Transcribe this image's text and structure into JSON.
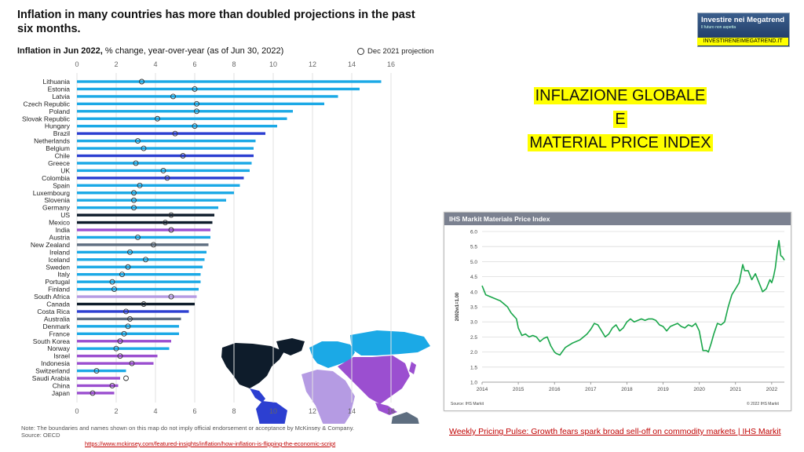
{
  "title": "Inflation in many countries has more than doubled projections in the past six months.",
  "subtitle_bold": "Inflation in Jun 2022,",
  "subtitle_rest": " % change, year-over-year (as of Jun 30, 2022)",
  "legend_label": "Dec 2021 projection",
  "note": "Note: The boundaries and names shown on this map do not imply official endorsement or acceptance by McKinsey & Company.",
  "source": "Source: OECD",
  "link_mckinsey": "https://www.mckinsey.com/featured-insights/inflation/how-inflation-is-flipping-the-economic-script",
  "brand_title": "Investire nei Megatrend",
  "brand_sub": "Il futuro non aspetta",
  "brand_url": "INVESTIRENEIMEGATREND.IT",
  "headline": [
    "INFLAZIONE GLOBALE",
    "E",
    "MATERIAL PRICE INDEX"
  ],
  "ihs_title": "IHS Markit Materials Price Index",
  "ihs_source": "Source: IHS Markit",
  "ihs_copyright": "© 2022 IHS Markit",
  "link_ihs": "Weekly Pricing Pulse: Growth fears spark broad sell-off on commodity markets | IHS Markit",
  "colors": {
    "europe": "#1ba9e6",
    "latam": "#2c3fd1",
    "northam": "#0e1c2b",
    "asia": "#9b4fd0",
    "africa": "#b59be3",
    "oceania": "#5e6e80",
    "ihs_line": "#1aa64a"
  },
  "chart_data": [
    {
      "type": "bar",
      "orientation": "horizontal",
      "title": "Inflation in Jun 2022, % change, year-over-year (as of Jun 30, 2022)",
      "xlim": [
        0,
        16
      ],
      "xticks": [
        0,
        2,
        4,
        6,
        8,
        10,
        12,
        14,
        16
      ],
      "legend": "Dec 2021 projection",
      "categories": [
        "Lithuania",
        "Estonia",
        "Latvia",
        "Czech Republic",
        "Poland",
        "Slovak Republic",
        "Hungary",
        "Brazil",
        "Netherlands",
        "Belgium",
        "Chile",
        "Greece",
        "UK",
        "Colombia",
        "Spain",
        "Luxembourg",
        "Slovenia",
        "Germany",
        "US",
        "Mexico",
        "India",
        "Austria",
        "New Zealand",
        "Ireland",
        "Iceland",
        "Sweden",
        "Italy",
        "Portugal",
        "Finland",
        "South Africa",
        "Canada",
        "Costa Rica",
        "Australia",
        "Denmark",
        "France",
        "South Korea",
        "Norway",
        "Israel",
        "Indonesia",
        "Switzerland",
        "Saudi Arabia",
        "China",
        "Japan"
      ],
      "regions": [
        "europe",
        "europe",
        "europe",
        "europe",
        "europe",
        "europe",
        "europe",
        "latam",
        "europe",
        "europe",
        "latam",
        "europe",
        "europe",
        "latam",
        "europe",
        "europe",
        "europe",
        "europe",
        "northam",
        "northam",
        "asia",
        "europe",
        "oceania",
        "europe",
        "europe",
        "europe",
        "europe",
        "europe",
        "europe",
        "africa",
        "northam",
        "latam",
        "oceania",
        "europe",
        "europe",
        "asia",
        "europe",
        "asia",
        "asia",
        "europe",
        "asia",
        "asia",
        "asia"
      ],
      "values": [
        15.5,
        14.4,
        13.3,
        12.6,
        11.0,
        10.7,
        10.2,
        9.6,
        9.1,
        9.0,
        9.0,
        8.9,
        8.8,
        8.5,
        8.3,
        8.0,
        7.6,
        7.2,
        7.0,
        6.9,
        6.8,
        6.8,
        6.7,
        6.6,
        6.5,
        6.4,
        6.3,
        6.3,
        6.2,
        6.1,
        6.0,
        5.7,
        5.3,
        5.2,
        5.2,
        4.8,
        4.7,
        4.1,
        3.9,
        2.5,
        2.2,
        2.1,
        1.9
      ],
      "projection": [
        3.3,
        6.0,
        4.9,
        6.1,
        6.1,
        4.1,
        6.0,
        5.0,
        3.1,
        3.4,
        5.4,
        3.0,
        4.4,
        4.6,
        3.2,
        2.9,
        2.9,
        2.9,
        4.8,
        4.5,
        4.8,
        3.1,
        3.9,
        2.7,
        3.5,
        2.6,
        2.3,
        1.8,
        1.9,
        4.8,
        3.4,
        2.5,
        2.7,
        2.6,
        2.4,
        2.2,
        2.0,
        2.2,
        2.8,
        1.0,
        2.5,
        1.8,
        0.8
      ]
    },
    {
      "type": "line",
      "title": "IHS Markit Materials Price Index",
      "ylabel": "2002w1=1.00",
      "ylim": [
        1.0,
        6.0
      ],
      "yticks": [
        "1.0",
        "1.5",
        "2.0",
        "2.5",
        "3.0",
        "3.5",
        "4.0",
        "4.5",
        "5.0",
        "5.5",
        "6.0"
      ],
      "xticks": [
        "2014",
        "2015",
        "2016",
        "2017",
        "2018",
        "2019",
        "2020",
        "2021",
        "2022"
      ],
      "xlim": [
        2014.0,
        2022.35
      ],
      "x": [
        2014.0,
        2014.1,
        2014.3,
        2014.5,
        2014.7,
        2014.8,
        2014.95,
        2015.0,
        2015.1,
        2015.2,
        2015.3,
        2015.4,
        2015.5,
        2015.6,
        2015.7,
        2015.8,
        2015.9,
        2016.0,
        2016.05,
        2016.15,
        2016.3,
        2016.5,
        2016.7,
        2016.9,
        2017.0,
        2017.1,
        2017.2,
        2017.3,
        2017.4,
        2017.5,
        2017.6,
        2017.7,
        2017.8,
        2017.9,
        2018.0,
        2018.1,
        2018.2,
        2018.4,
        2018.5,
        2018.6,
        2018.7,
        2018.8,
        2018.9,
        2019.0,
        2019.1,
        2019.2,
        2019.3,
        2019.4,
        2019.5,
        2019.6,
        2019.7,
        2019.8,
        2019.9,
        2020.0,
        2020.1,
        2020.2,
        2020.25,
        2020.33,
        2020.4,
        2020.5,
        2020.6,
        2020.7,
        2020.8,
        2020.9,
        2021.0,
        2021.1,
        2021.2,
        2021.25,
        2021.35,
        2021.45,
        2021.55,
        2021.65,
        2021.75,
        2021.85,
        2021.95,
        2022.0,
        2022.05,
        2022.1,
        2022.15,
        2022.2,
        2022.25,
        2022.3,
        2022.35
      ],
      "values": [
        4.2,
        3.9,
        3.8,
        3.7,
        3.5,
        3.3,
        3.1,
        2.8,
        2.55,
        2.6,
        2.5,
        2.55,
        2.5,
        2.35,
        2.45,
        2.5,
        2.2,
        2.0,
        1.95,
        1.9,
        2.15,
        2.3,
        2.4,
        2.6,
        2.75,
        2.95,
        2.9,
        2.7,
        2.5,
        2.6,
        2.8,
        2.9,
        2.7,
        2.8,
        3.0,
        3.1,
        3.0,
        3.1,
        3.05,
        3.1,
        3.1,
        3.05,
        2.9,
        2.85,
        2.7,
        2.85,
        2.9,
        2.95,
        2.85,
        2.8,
        2.9,
        2.85,
        2.95,
        2.7,
        2.05,
        2.05,
        2.0,
        2.3,
        2.6,
        2.95,
        2.9,
        3.0,
        3.5,
        3.9,
        4.1,
        4.3,
        4.9,
        4.7,
        4.7,
        4.4,
        4.6,
        4.3,
        4.0,
        4.1,
        4.4,
        4.3,
        4.5,
        4.8,
        5.3,
        5.7,
        5.2,
        5.15,
        5.05
      ]
    }
  ]
}
